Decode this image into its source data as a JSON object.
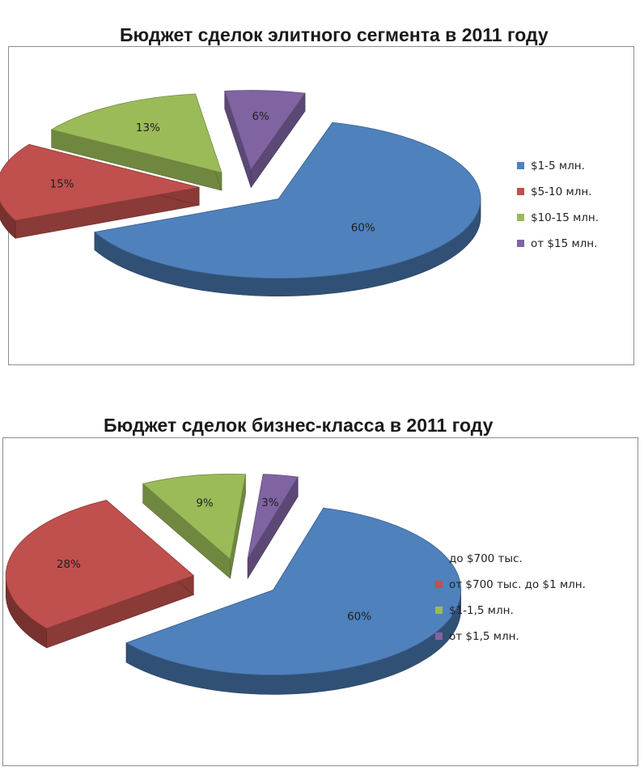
{
  "chart_data": [
    {
      "type": "pie",
      "title": "Бюджет сделок элитного сегмента в 2011 году",
      "categories": [
        "$1-5 млн.",
        "$5-10 млн.",
        "$10-15 млн.",
        "от $15 млн."
      ],
      "values": [
        60,
        15,
        13,
        6
      ],
      "labels": [
        "60%",
        "15%",
        "13%",
        "6%"
      ],
      "colors": [
        "#4f81bd",
        "#c0504d",
        "#9bbb59",
        "#8064a2"
      ],
      "legend_position": "right"
    },
    {
      "type": "pie",
      "title": "Бюджет сделок бизнес-класса в 2011 году",
      "categories": [
        "до $700 тыс.",
        "от $700 тыс. до $1 млн.",
        "$1-1,5 млн.",
        "от $1,5 млн."
      ],
      "values": [
        60,
        28,
        9,
        3
      ],
      "labels": [
        "60%",
        "28%",
        "9%",
        "3%"
      ],
      "colors": [
        "#4f81bd",
        "#c0504d",
        "#9bbb59",
        "#8064a2"
      ],
      "legend_position": "right"
    }
  ]
}
